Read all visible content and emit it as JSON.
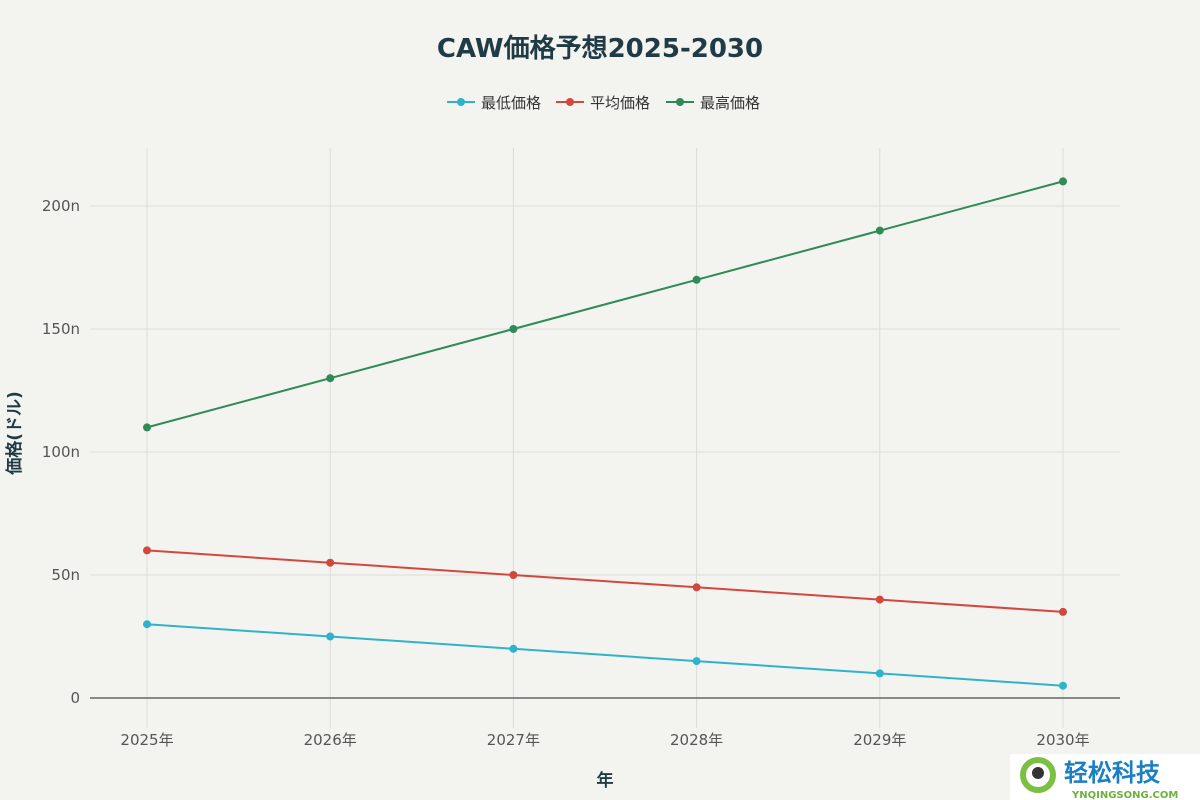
{
  "chart_data": {
    "type": "line",
    "title": "CAW価格予想2025-2030",
    "xlabel": "年",
    "ylabel": "価格(ドル)",
    "categories": [
      "2025年",
      "2026年",
      "2027年",
      "2028年",
      "2029年",
      "2030年"
    ],
    "yticks": [
      0,
      50,
      100,
      150,
      200
    ],
    "ytick_labels": [
      "0",
      "50n",
      "100n",
      "150n",
      "200n"
    ],
    "ylim": [
      -20,
      224
    ],
    "grid": true,
    "legend": "top-center",
    "series": [
      {
        "name": "最低価格",
        "color": "#2fb3cc",
        "values": [
          30,
          25,
          20,
          15,
          10,
          5
        ]
      },
      {
        "name": "平均価格",
        "color": "#d2483f",
        "values": [
          60,
          55,
          50,
          45,
          40,
          35
        ]
      },
      {
        "name": "最高価格",
        "color": "#2e8b57",
        "values": [
          110,
          130,
          150,
          170,
          190,
          210
        ]
      }
    ]
  },
  "watermark": {
    "brand": "轻松科技",
    "site": "YNQINGSONG.COM"
  }
}
